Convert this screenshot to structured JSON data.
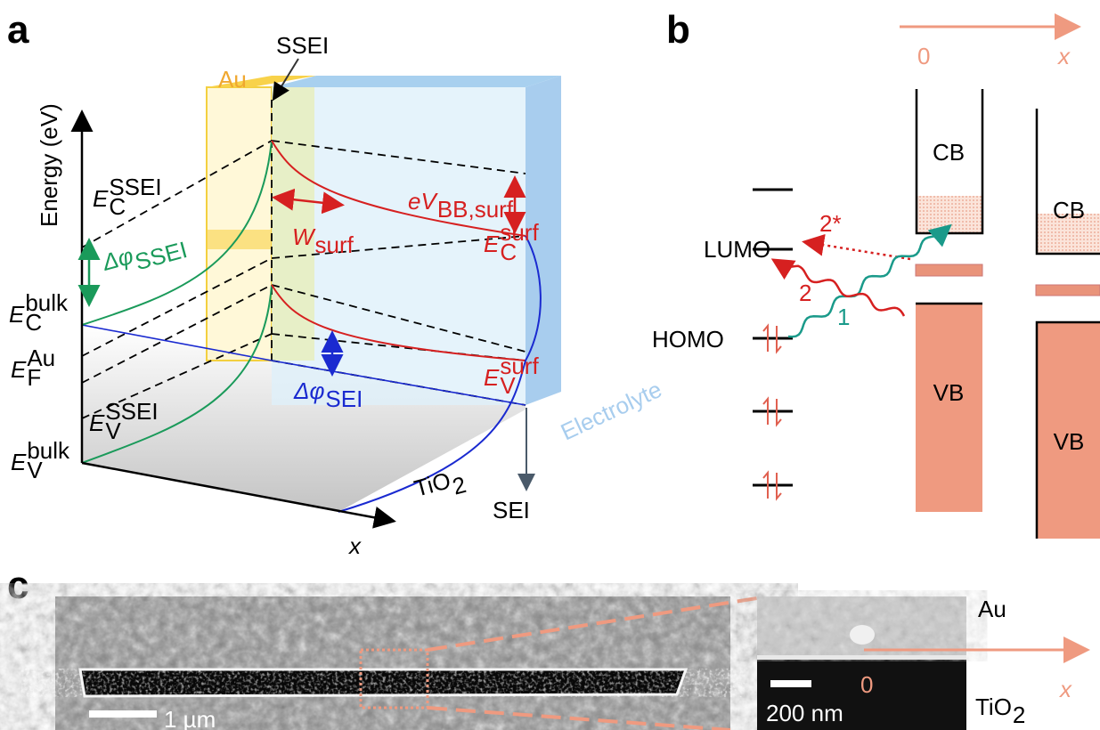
{
  "panel_a": {
    "label": "a",
    "ssei": "SSEI",
    "au": "Au",
    "energy_axis": "Energy (eV)",
    "x_axis": "x",
    "e_c_ssei": {
      "base": "E",
      "sup": "SSEI",
      "sub": "C"
    },
    "dphi_ssei": {
      "base": "Δφ",
      "sub": "SSEI"
    },
    "e_c_bulk": {
      "base": "E",
      "sup": "bulk",
      "sub": "C"
    },
    "e_f_au": {
      "base": "E",
      "sup": "Au",
      "sub": "F"
    },
    "e_v_ssei": {
      "base": "E",
      "sup": "SSEI",
      "sub": "V"
    },
    "e_v_bulk": {
      "base": "E",
      "sup": "bulk",
      "sub": "V"
    },
    "w_surf": {
      "base": "W",
      "sub": "surf"
    },
    "ev_bb_surf": {
      "base": "eV",
      "sub": "BB,surf"
    },
    "e_c_surf": {
      "base": "E",
      "sup": "surf",
      "sub": "C"
    },
    "e_v_surf": {
      "base": "E",
      "sup": "surf",
      "sub": "V"
    },
    "dphi_sei": {
      "base": "Δφ",
      "sub": "SEI"
    },
    "electrolyte": "Electrolyte",
    "tio2": {
      "base": "TiO",
      "sub": "2"
    },
    "sei": "SEI"
  },
  "panel_b": {
    "label": "b",
    "origin": "0",
    "x_axis": "x",
    "cb_left": "CB",
    "cb_right": "CB",
    "lumo": "LUMO",
    "homo": "HOMO",
    "transition_2star": "2*",
    "transition_2": "2",
    "transition_1": "1",
    "vb_left": "VB",
    "vb_right": "VB"
  },
  "panel_c": {
    "label": "c",
    "scale_large": "1 µm",
    "au": "Au",
    "origin": "0",
    "x_axis": "x",
    "scale_small": "200 nm",
    "tio2": {
      "base": "TiO",
      "sub": "2"
    }
  }
}
